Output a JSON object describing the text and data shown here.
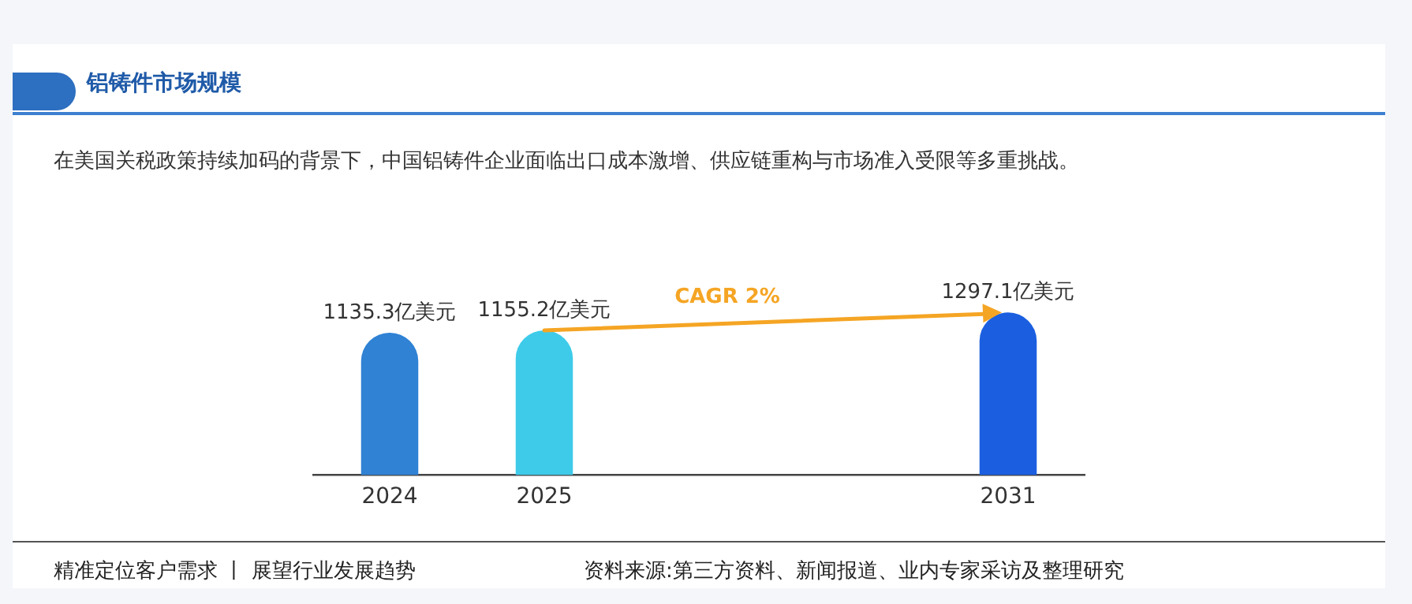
{
  "chart_data": {
    "type": "bar",
    "title": "铝铸件市场规模",
    "subtitle": "在美国关税政策持续加码的背景下，中国铝铸件企业面临出口成本激增、供应链重构与市场准入受限等多重挑战。",
    "categories": [
      "2024",
      "2025",
      null,
      null,
      "2031"
    ],
    "values": [
      1135.3,
      1155.2,
      null,
      null,
      1297.1
    ],
    "colors": [
      "#2f82d4",
      "#3ecbea",
      "#ffffff",
      "#ffffff",
      "#1b5fe0"
    ],
    "value_labels": [
      "1135.3亿美元",
      "1155.2亿美元",
      null,
      null,
      "1297.1亿美元"
    ],
    "annotations": [
      "CAGR 2%",
      "精准定位客户需求 丨 展望行业发展趋势",
      "资料来源:第三方资料、新闻报道、业内专家采访及整理研究"
    ],
    "grid": false,
    "legend": false,
    "tick_labels": "x"
  }
}
